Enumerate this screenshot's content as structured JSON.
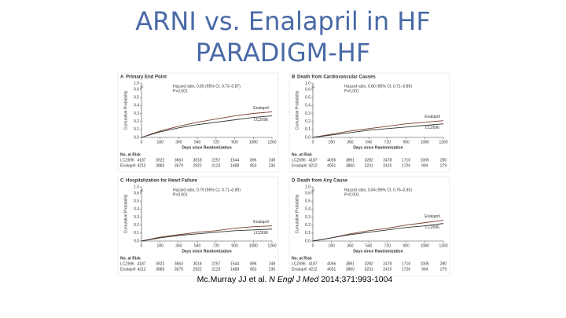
{
  "title": [
    "ARNI vs. Enalapril in HF",
    "PARADIGM-HF"
  ],
  "citation": {
    "authors": "Mc.Murray JJ et al. ",
    "journal": "N Engl J Med",
    "ref": " 2014;371:993-1004"
  },
  "chart_data": [
    {
      "type": "line",
      "panel": "A",
      "title": "Primary End Point",
      "annotation": [
        "Hazard ratio, 0.80 (95% CI, 0.73–0.87)",
        "P<0.001"
      ],
      "xlabel": "Days since Randomization",
      "ylabel": "Cumulative Probability",
      "x": [
        0,
        180,
        360,
        540,
        720,
        900,
        1080,
        1260
      ],
      "xlim": [
        0,
        1260
      ],
      "xticks": [
        0,
        180,
        360,
        540,
        720,
        900,
        1080,
        1260
      ],
      "ylim": [
        0,
        1
      ],
      "ybreak": [
        0.6,
        1
      ],
      "yticks": [
        {
          "value": 0,
          "label": "0.0"
        },
        0.1,
        0.2,
        0.3,
        0.4,
        0.5,
        0.6,
        {
          "value": 1,
          "label": "1.0"
        }
      ],
      "series": [
        {
          "name": "Enalapril",
          "color": "#7a3b2e",
          "values": [
            0,
            0.08,
            0.14,
            0.19,
            0.23,
            0.27,
            0.3,
            0.32
          ]
        },
        {
          "name": "LCZ696",
          "color": "#333333",
          "values": [
            0,
            0.07,
            0.12,
            0.16,
            0.19,
            0.22,
            0.25,
            0.27
          ]
        }
      ],
      "risk_label": "No. at Risk",
      "risk": [
        {
          "name": "LCZ696",
          "counts": [
            4187,
            3922,
            3663,
            3018,
            2257,
            1544,
            896,
            249
          ]
        },
        {
          "name": "Enalapril",
          "counts": [
            4212,
            3883,
            3579,
            2922,
            2123,
            1488,
            853,
            236
          ]
        }
      ]
    },
    {
      "type": "line",
      "panel": "B",
      "title": "Death from Cardiovascular Causes",
      "annotation": [
        "Hazard ratio, 0.80 (95% CI, 0.71–0.89)",
        "P<0.001"
      ],
      "xlabel": "Days since Randomization",
      "ylabel": "Cumulative Probability",
      "x": [
        0,
        180,
        360,
        540,
        720,
        900,
        1080,
        1260
      ],
      "xlim": [
        0,
        1260
      ],
      "xticks": [
        0,
        180,
        360,
        540,
        720,
        900,
        1080,
        1260
      ],
      "ylim": [
        0,
        1
      ],
      "ybreak": [
        0.6,
        1
      ],
      "yticks": [
        {
          "value": 0,
          "label": "0.0"
        },
        0.1,
        0.2,
        0.3,
        0.4,
        0.5,
        0.6,
        {
          "value": 1,
          "label": "1.0"
        }
      ],
      "series": [
        {
          "name": "Enalapril",
          "color": "#7a3b2e",
          "values": [
            0,
            0.04,
            0.08,
            0.11,
            0.14,
            0.17,
            0.19,
            0.21
          ]
        },
        {
          "name": "LCZ696",
          "color": "#333333",
          "values": [
            0,
            0.03,
            0.06,
            0.09,
            0.11,
            0.13,
            0.15,
            0.17
          ]
        }
      ],
      "risk_label": "No. at Risk",
      "risk": [
        {
          "name": "LCZ696",
          "counts": [
            4187,
            4056,
            3891,
            3282,
            2478,
            1716,
            1005,
            280
          ]
        },
        {
          "name": "Enalapril",
          "counts": [
            4212,
            4051,
            3860,
            3231,
            2410,
            1726,
            994,
            279
          ]
        }
      ]
    },
    {
      "type": "line",
      "panel": "C",
      "title": "Hospitalization for Heart Failure",
      "annotation": [
        "Hazard ratio, 0.79 (95% CI, 0.71–0.89)",
        "P<0.001"
      ],
      "xlabel": "Days since Randomization",
      "ylabel": "Cumulative Probability",
      "x": [
        0,
        180,
        360,
        540,
        720,
        900,
        1080,
        1260
      ],
      "xlim": [
        0,
        1260
      ],
      "xticks": [
        0,
        180,
        360,
        540,
        720,
        900,
        1080,
        1260
      ],
      "ylim": [
        0,
        1
      ],
      "ybreak": [
        0.6,
        1
      ],
      "yticks": [
        {
          "value": 0,
          "label": "0.0"
        },
        0.1,
        0.2,
        0.3,
        0.4,
        0.5,
        0.6,
        {
          "value": 1,
          "label": "1.0"
        }
      ],
      "series": [
        {
          "name": "Enalapril",
          "color": "#7a3b2e",
          "values": [
            0,
            0.05,
            0.08,
            0.11,
            0.13,
            0.16,
            0.18,
            0.19
          ]
        },
        {
          "name": "LCZ696",
          "color": "#333333",
          "values": [
            0,
            0.04,
            0.07,
            0.09,
            0.11,
            0.13,
            0.14,
            0.15
          ]
        }
      ],
      "risk_label": "No. at Risk",
      "risk": [
        {
          "name": "LCZ696",
          "counts": [
            4187,
            3922,
            3663,
            3018,
            2257,
            1544,
            896,
            249
          ]
        },
        {
          "name": "Enalapril",
          "counts": [
            4212,
            3883,
            3579,
            2922,
            2123,
            1488,
            853,
            236
          ]
        }
      ]
    },
    {
      "type": "line",
      "panel": "D",
      "title": "Death from Any Cause",
      "annotation": [
        "Hazard ratio, 0.84 (95% CI, 0.76–0.93)",
        "P<0.001"
      ],
      "xlabel": "Days since Randomization",
      "ylabel": "Cumulative Probability",
      "x": [
        0,
        180,
        360,
        540,
        720,
        900,
        1080,
        1260
      ],
      "xlim": [
        0,
        1260
      ],
      "xticks": [
        0,
        180,
        360,
        540,
        720,
        900,
        1080,
        1260
      ],
      "ylim": [
        0,
        1
      ],
      "ybreak": [
        0.6,
        1
      ],
      "yticks": [
        {
          "value": 0,
          "label": "0.0"
        },
        0.1,
        0.2,
        0.3,
        0.4,
        0.5,
        0.6,
        {
          "value": 1,
          "label": "1.0"
        }
      ],
      "series": [
        {
          "name": "Enalapril",
          "color": "#7a3b2e",
          "values": [
            0,
            0.04,
            0.09,
            0.13,
            0.16,
            0.2,
            0.23,
            0.26
          ]
        },
        {
          "name": "LCZ696",
          "color": "#333333",
          "values": [
            0,
            0.04,
            0.08,
            0.11,
            0.14,
            0.17,
            0.19,
            0.22
          ]
        }
      ],
      "risk_label": "No. at Risk",
      "risk": [
        {
          "name": "LCZ696",
          "counts": [
            4187,
            4056,
            3891,
            3282,
            2478,
            1716,
            1005,
            280
          ]
        },
        {
          "name": "Enalapril",
          "counts": [
            4212,
            4051,
            3860,
            3231,
            2410,
            1726,
            994,
            279
          ]
        }
      ]
    }
  ]
}
